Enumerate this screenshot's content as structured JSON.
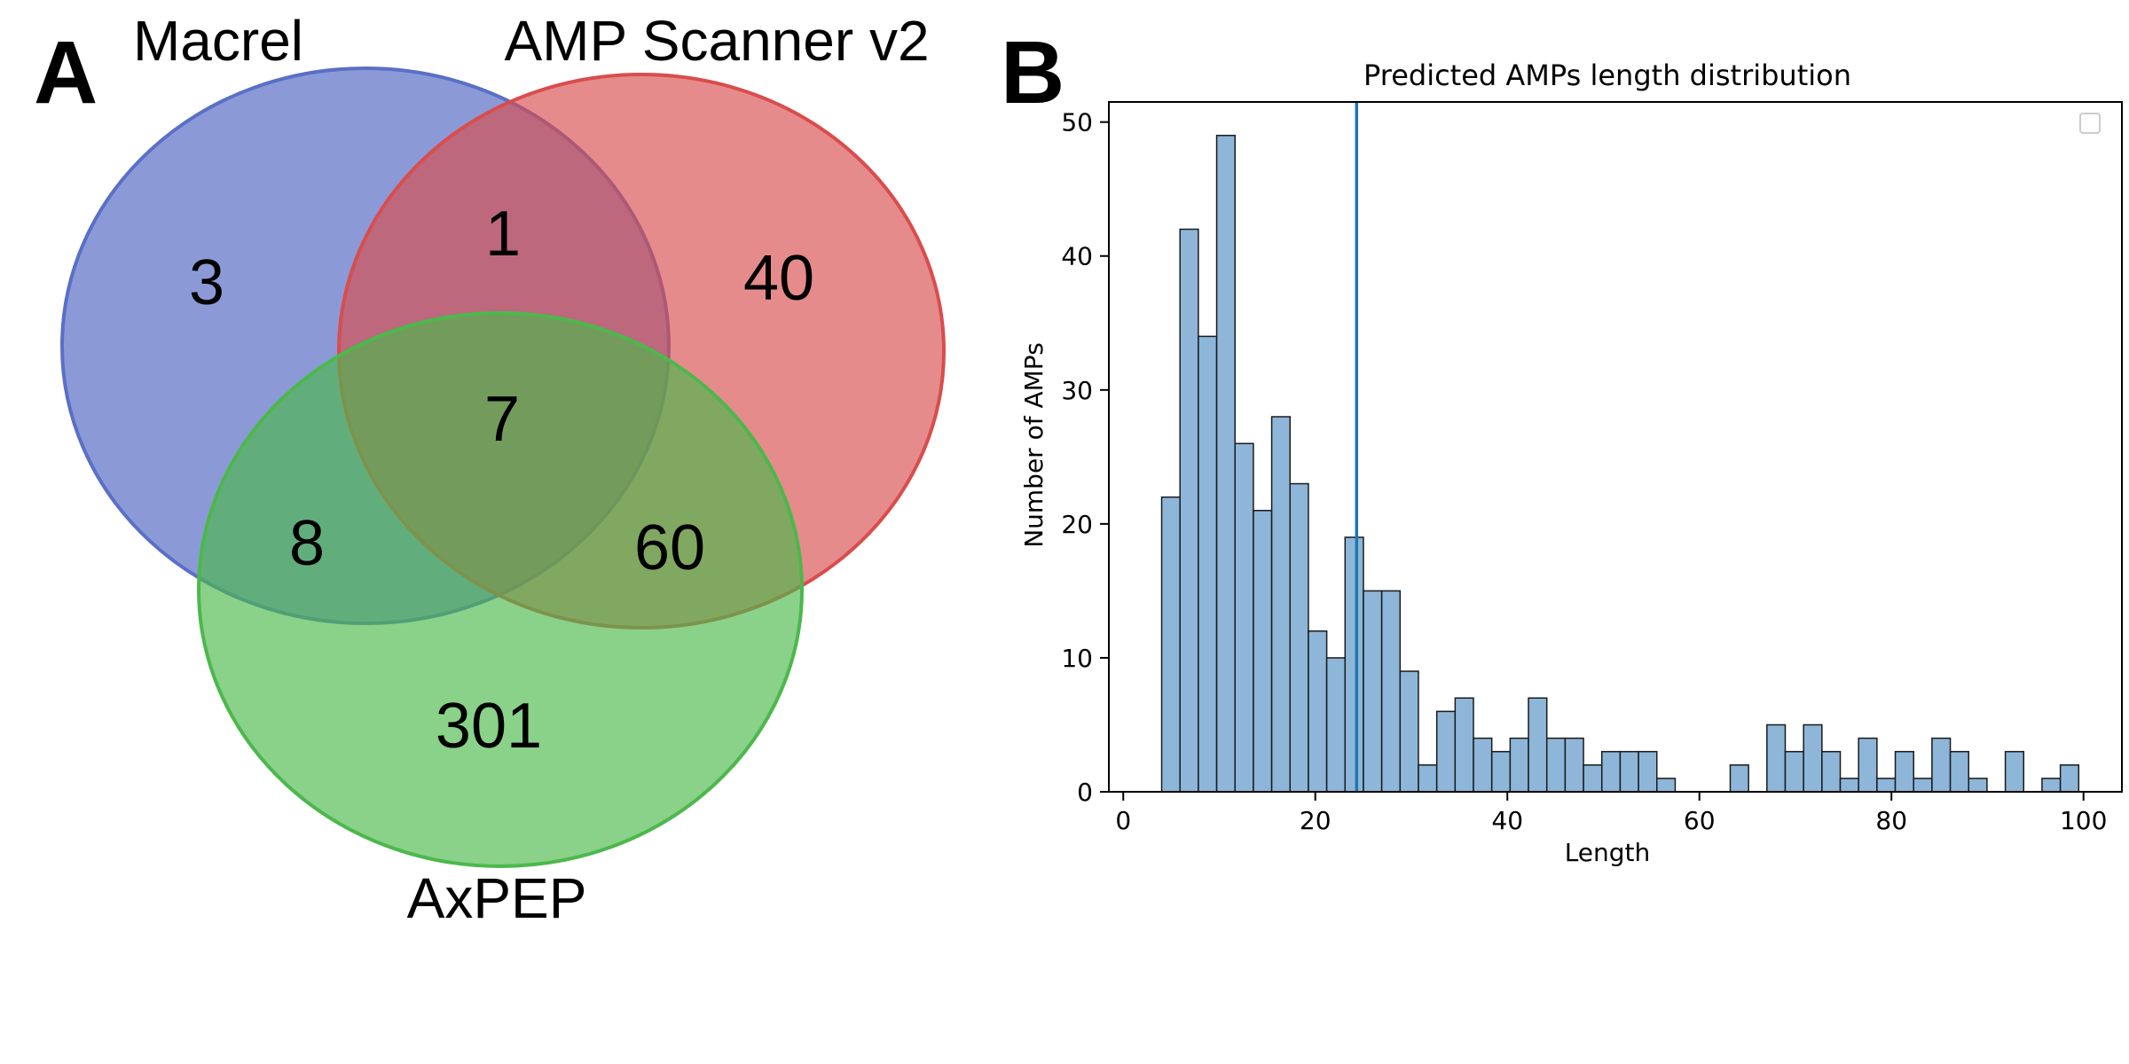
{
  "panel_a": {
    "letter": "A",
    "sets": [
      {
        "name": "Macrel",
        "color": "#5a6fc6"
      },
      {
        "name": "AMP Scanner v2",
        "color": "#d94d4d"
      },
      {
        "name": "AxPEP",
        "color": "#4cb84c"
      }
    ],
    "regions": {
      "macrel_only": "3",
      "scanner_only": "40",
      "axpep_only": "301",
      "macrel_scanner": "1",
      "macrel_axpep": "8",
      "scanner_axpep": "60",
      "all_three": "7"
    }
  },
  "panel_b": {
    "letter": "B"
  },
  "chart_data": [
    {
      "type": "venn",
      "sets": [
        "Macrel",
        "AMP Scanner v2",
        "AxPEP"
      ],
      "regions": [
        {
          "sets": [
            "Macrel"
          ],
          "value": 3
        },
        {
          "sets": [
            "AMP Scanner v2"
          ],
          "value": 40
        },
        {
          "sets": [
            "AxPEP"
          ],
          "value": 301
        },
        {
          "sets": [
            "Macrel",
            "AMP Scanner v2"
          ],
          "value": 1
        },
        {
          "sets": [
            "Macrel",
            "AxPEP"
          ],
          "value": 8
        },
        {
          "sets": [
            "AMP Scanner v2",
            "AxPEP"
          ],
          "value": 60
        },
        {
          "sets": [
            "Macrel",
            "AMP Scanner v2",
            "AxPEP"
          ],
          "value": 7
        }
      ]
    },
    {
      "type": "bar",
      "title": "Predicted AMPs length distribution",
      "xlabel": "Length",
      "ylabel": "Number of AMPs",
      "xlim": [
        -1.5,
        104
      ],
      "ylim": [
        0,
        51.5
      ],
      "xticks": [
        0,
        20,
        40,
        60,
        80,
        100
      ],
      "yticks": [
        0,
        10,
        20,
        30,
        40,
        50
      ],
      "bin_width": 1.91,
      "bin_start": 4,
      "values": [
        22,
        42,
        34,
        49,
        26,
        21,
        28,
        23,
        12,
        10,
        19,
        15,
        15,
        9,
        2,
        6,
        7,
        4,
        3,
        4,
        7,
        4,
        4,
        2,
        3,
        3,
        3,
        1,
        0,
        0,
        0,
        2,
        0,
        5,
        3,
        5,
        3,
        1,
        4,
        1,
        3,
        1,
        4,
        3,
        1,
        0,
        3,
        0,
        1,
        2
      ],
      "vline_x": 24.3,
      "bar_color": "#8db6d8",
      "line_color": "#1f77b4",
      "legend": "top-right",
      "grid": false
    }
  ]
}
